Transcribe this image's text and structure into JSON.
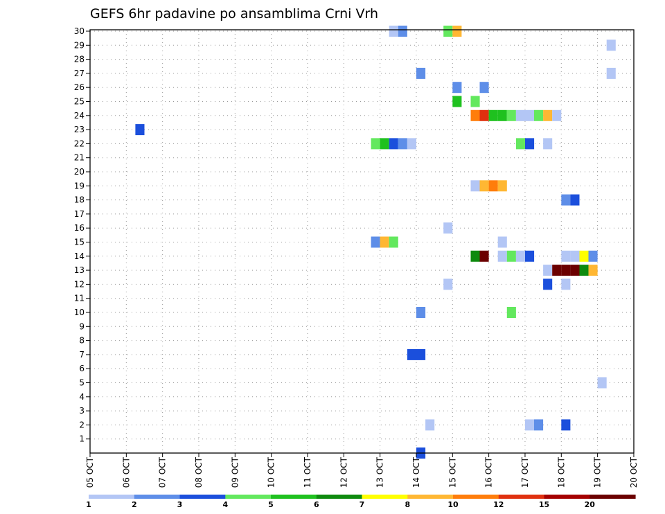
{
  "chart_data": {
    "type": "heatmap",
    "title": "GEFS 6hr padavine po ansamblima Crni Vrh",
    "ylim": [
      0,
      30
    ],
    "y_ticks": [
      1,
      2,
      3,
      4,
      5,
      6,
      7,
      8,
      9,
      10,
      11,
      12,
      13,
      14,
      15,
      16,
      17,
      18,
      19,
      20,
      21,
      22,
      23,
      24,
      25,
      26,
      27,
      28,
      29,
      30
    ],
    "x_ticks": [
      "05 OCT",
      "06 OCT",
      "07 OCT",
      "08 OCT",
      "09 OCT",
      "10 OCT",
      "11 OCT",
      "12 OCT",
      "13 OCT",
      "14 OCT",
      "15 OCT",
      "16 OCT",
      "17 OCT",
      "18 OCT",
      "19 OCT",
      "20 OCT"
    ],
    "grid": true,
    "colorbar": {
      "position": "bottom",
      "labels": [
        "1",
        "2",
        "3",
        "4",
        "5",
        "6",
        "7",
        "8",
        "10",
        "12",
        "15",
        "20"
      ],
      "colors": [
        "#b3c6f5",
        "#5e8ee8",
        "#1b4fdc",
        "#63e85e",
        "#1fc11f",
        "#0e8a0e",
        "#ffff00",
        "#ffb733",
        "#ff7d0b",
        "#e0300f",
        "#a50000",
        "#6b0000"
      ]
    },
    "cells": [
      {
        "member": 30,
        "day": 13.25,
        "value": 1
      },
      {
        "member": 30,
        "day": 13.5,
        "value": 2
      },
      {
        "member": 30,
        "day": 14.75,
        "value": 4
      },
      {
        "member": 30,
        "day": 15.0,
        "value": 8
      },
      {
        "member": 29,
        "day": 19.25,
        "value": 1
      },
      {
        "member": 27,
        "day": 14.0,
        "value": 2
      },
      {
        "member": 27,
        "day": 19.25,
        "value": 1
      },
      {
        "member": 26,
        "day": 15.0,
        "value": 2
      },
      {
        "member": 26,
        "day": 15.75,
        "value": 2
      },
      {
        "member": 25,
        "day": 15.0,
        "value": 5
      },
      {
        "member": 25,
        "day": 15.5,
        "value": 4
      },
      {
        "member": 24,
        "day": 15.5,
        "value": 11
      },
      {
        "member": 24,
        "day": 15.75,
        "value": 12
      },
      {
        "member": 24,
        "day": 16.0,
        "value": 5
      },
      {
        "member": 24,
        "day": 16.25,
        "value": 5
      },
      {
        "member": 24,
        "day": 16.5,
        "value": 4
      },
      {
        "member": 24,
        "day": 16.75,
        "value": 1
      },
      {
        "member": 24,
        "day": 17.0,
        "value": 1
      },
      {
        "member": 24,
        "day": 17.25,
        "value": 4
      },
      {
        "member": 24,
        "day": 17.5,
        "value": 8
      },
      {
        "member": 24,
        "day": 17.75,
        "value": 1
      },
      {
        "member": 23,
        "day": 6.25,
        "value": 3
      },
      {
        "member": 22,
        "day": 12.75,
        "value": 4
      },
      {
        "member": 22,
        "day": 13.0,
        "value": 5
      },
      {
        "member": 22,
        "day": 13.25,
        "value": 3
      },
      {
        "member": 22,
        "day": 13.5,
        "value": 2
      },
      {
        "member": 22,
        "day": 13.75,
        "value": 1
      },
      {
        "member": 22,
        "day": 16.75,
        "value": 4
      },
      {
        "member": 22,
        "day": 17.0,
        "value": 3
      },
      {
        "member": 22,
        "day": 17.5,
        "value": 1
      },
      {
        "member": 19,
        "day": 15.5,
        "value": 1
      },
      {
        "member": 19,
        "day": 15.75,
        "value": 8
      },
      {
        "member": 19,
        "day": 16.0,
        "value": 10
      },
      {
        "member": 19,
        "day": 16.25,
        "value": 8
      },
      {
        "member": 18,
        "day": 18.0,
        "value": 2
      },
      {
        "member": 18,
        "day": 18.25,
        "value": 3
      },
      {
        "member": 16,
        "day": 14.75,
        "value": 1
      },
      {
        "member": 15,
        "day": 12.75,
        "value": 2
      },
      {
        "member": 15,
        "day": 13.0,
        "value": 9
      },
      {
        "member": 15,
        "day": 13.25,
        "value": 4
      },
      {
        "member": 15,
        "day": 16.25,
        "value": 1
      },
      {
        "member": 14,
        "day": 15.5,
        "value": 6
      },
      {
        "member": 14,
        "day": 15.75,
        "value": 25
      },
      {
        "member": 14,
        "day": 16.25,
        "value": 1
      },
      {
        "member": 14,
        "day": 16.5,
        "value": 4
      },
      {
        "member": 14,
        "day": 16.75,
        "value": 1
      },
      {
        "member": 14,
        "day": 17.0,
        "value": 3
      },
      {
        "member": 14,
        "day": 18.0,
        "value": 1
      },
      {
        "member": 14,
        "day": 18.25,
        "value": 1
      },
      {
        "member": 14,
        "day": 18.5,
        "value": 7
      },
      {
        "member": 14,
        "day": 18.75,
        "value": 2
      },
      {
        "member": 13,
        "day": 17.5,
        "value": 1
      },
      {
        "member": 13,
        "day": 17.75,
        "value": 25
      },
      {
        "member": 13,
        "day": 18.0,
        "value": 25
      },
      {
        "member": 13,
        "day": 18.25,
        "value": 25
      },
      {
        "member": 13,
        "day": 18.5,
        "value": 6
      },
      {
        "member": 13,
        "day": 18.75,
        "value": 9
      },
      {
        "member": 12,
        "day": 14.75,
        "value": 1
      },
      {
        "member": 12,
        "day": 17.5,
        "value": 3
      },
      {
        "member": 12,
        "day": 18.0,
        "value": 1
      },
      {
        "member": 10,
        "day": 14.0,
        "value": 2
      },
      {
        "member": 10,
        "day": 16.5,
        "value": 4
      },
      {
        "member": 7,
        "day": 13.75,
        "value": 3
      },
      {
        "member": 7,
        "day": 14.0,
        "value": 3
      },
      {
        "member": 5,
        "day": 19.0,
        "value": 1
      },
      {
        "member": 2,
        "day": 14.25,
        "value": 1
      },
      {
        "member": 2,
        "day": 17.0,
        "value": 1
      },
      {
        "member": 2,
        "day": 17.25,
        "value": 2
      },
      {
        "member": 2,
        "day": 18.0,
        "value": 3
      },
      {
        "member": 0,
        "day": 14.0,
        "value": 3
      }
    ]
  }
}
